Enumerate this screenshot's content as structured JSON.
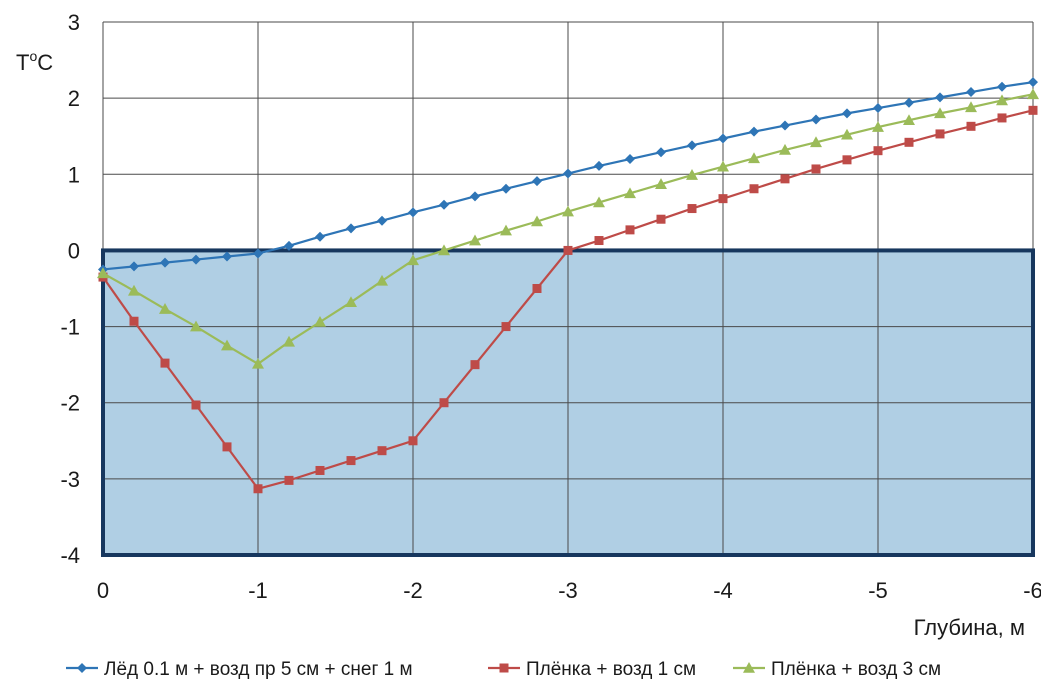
{
  "chart_data": {
    "type": "line",
    "ylabel_main": "T",
    "ylabel_sup": "o",
    "ylabel_unit": "C",
    "xlabel": "Глубина, м",
    "xlim": [
      0,
      -6
    ],
    "ylim": [
      -4,
      3
    ],
    "grid": true,
    "legend_position": "bottom",
    "x_ticks": [
      "0",
      "-1",
      "-2",
      "-3",
      "-4",
      "-5",
      "-6"
    ],
    "y_ticks": [
      "3",
      "2",
      "1",
      "0",
      "-1",
      "-2",
      "-3",
      "-4"
    ],
    "shaded_region": {
      "x": [
        0,
        -6
      ],
      "y": [
        -4,
        0
      ],
      "fill": "#b0cfe4",
      "stroke": "#17375e"
    },
    "x": [
      0,
      -0.2,
      -0.4,
      -0.6,
      -0.8,
      -1.0,
      -1.2,
      -1.4,
      -1.6,
      -1.8,
      -2.0,
      -2.2,
      -2.4,
      -2.6,
      -2.8,
      -3.0,
      -3.2,
      -3.4,
      -3.6,
      -3.8,
      -4.0,
      -4.2,
      -4.4,
      -4.6,
      -4.8,
      -5.0,
      -5.2,
      -5.4,
      -5.6,
      -5.8,
      -6.0
    ],
    "series": [
      {
        "name": "Лёд 0.1 м + возд пр 5 см + снег 1 м",
        "color": "#2e75b6",
        "marker": "diamond",
        "values": [
          -0.25,
          -0.21,
          -0.16,
          -0.12,
          -0.08,
          -0.04,
          0.06,
          0.18,
          0.29,
          0.39,
          0.5,
          0.6,
          0.71,
          0.81,
          0.91,
          1.01,
          1.11,
          1.2,
          1.29,
          1.38,
          1.47,
          1.56,
          1.64,
          1.72,
          1.8,
          1.87,
          1.94,
          2.01,
          2.08,
          2.15,
          2.21
        ]
      },
      {
        "name": "Плёнка  + возд 1 см",
        "color": "#be4b48",
        "marker": "square",
        "values": [
          -0.35,
          -0.93,
          -1.48,
          -2.03,
          -2.58,
          -3.13,
          -3.02,
          -2.89,
          -2.76,
          -2.63,
          -2.5,
          -2.0,
          -1.5,
          -1.0,
          -0.5,
          0.0,
          0.13,
          0.27,
          0.41,
          0.55,
          0.68,
          0.81,
          0.94,
          1.07,
          1.19,
          1.31,
          1.42,
          1.53,
          1.63,
          1.74,
          1.84
        ]
      },
      {
        "name": "Плёнка  + возд 3 см",
        "color": "#9bbb59",
        "marker": "triangle",
        "values": [
          -0.3,
          -0.53,
          -0.77,
          -1.0,
          -1.25,
          -1.49,
          -1.2,
          -0.94,
          -0.68,
          -0.4,
          -0.13,
          0.0,
          0.13,
          0.26,
          0.38,
          0.51,
          0.63,
          0.75,
          0.87,
          0.99,
          1.1,
          1.21,
          1.32,
          1.42,
          1.52,
          1.62,
          1.71,
          1.8,
          1.88,
          1.97,
          2.05
        ]
      }
    ]
  }
}
